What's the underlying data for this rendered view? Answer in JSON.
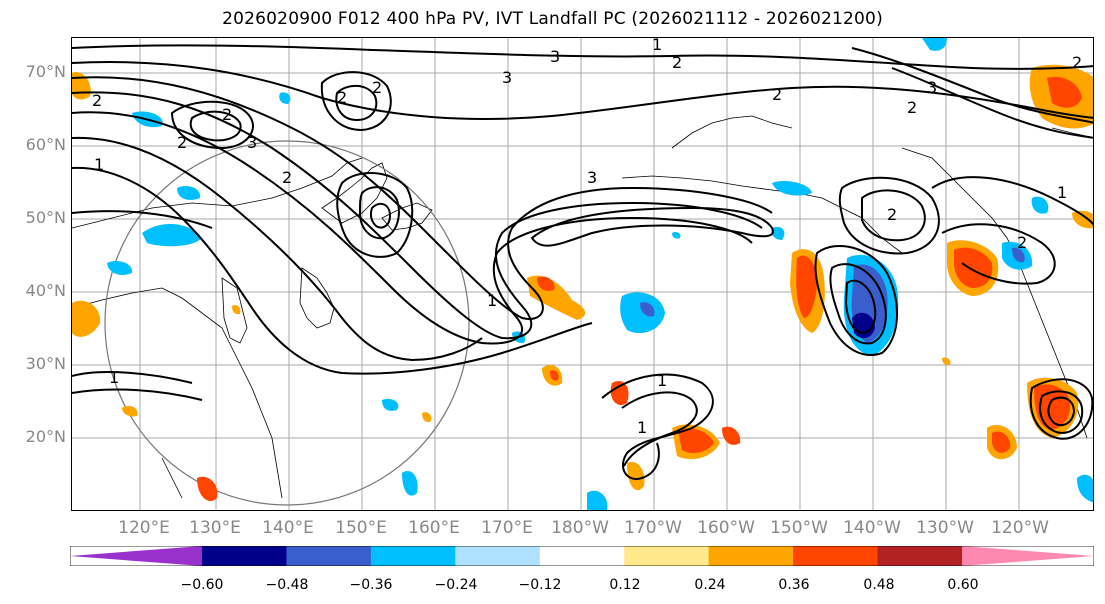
{
  "title": "2026020900 F012 400 hPa PV, IVT Landfall PC (2026021112 - 2026021200)",
  "lat_labels": [
    "70°N",
    "60°N",
    "50°N",
    "40°N",
    "30°N",
    "20°N"
  ],
  "lon_labels": [
    "120°E",
    "130°E",
    "140°E",
    "150°E",
    "160°E",
    "170°E",
    "180°W",
    "170°W",
    "160°W",
    "150°W",
    "140°W",
    "130°W",
    "120°W"
  ],
  "colorbar": {
    "ticks": [
      "−0.60",
      "−0.48",
      "−0.36",
      "−0.24",
      "−0.12",
      "0.12",
      "0.24",
      "0.36",
      "0.48",
      "0.60"
    ],
    "colors": [
      "#9932cc",
      "#00008b",
      "#3a5fcd",
      "#00bfff",
      "#b0e0ff",
      "#ffffff",
      "#ffe98a",
      "#ffa500",
      "#ff4500",
      "#b22222",
      "#ff88b0"
    ]
  },
  "contour_labels": [
    "2",
    "3",
    "2",
    "2",
    "3",
    "1",
    "2",
    "2",
    "3",
    "3",
    "2",
    "1",
    "2",
    "1",
    "2",
    "2",
    "2",
    "3",
    "2",
    "2",
    "1",
    "1",
    "1",
    "1"
  ]
}
